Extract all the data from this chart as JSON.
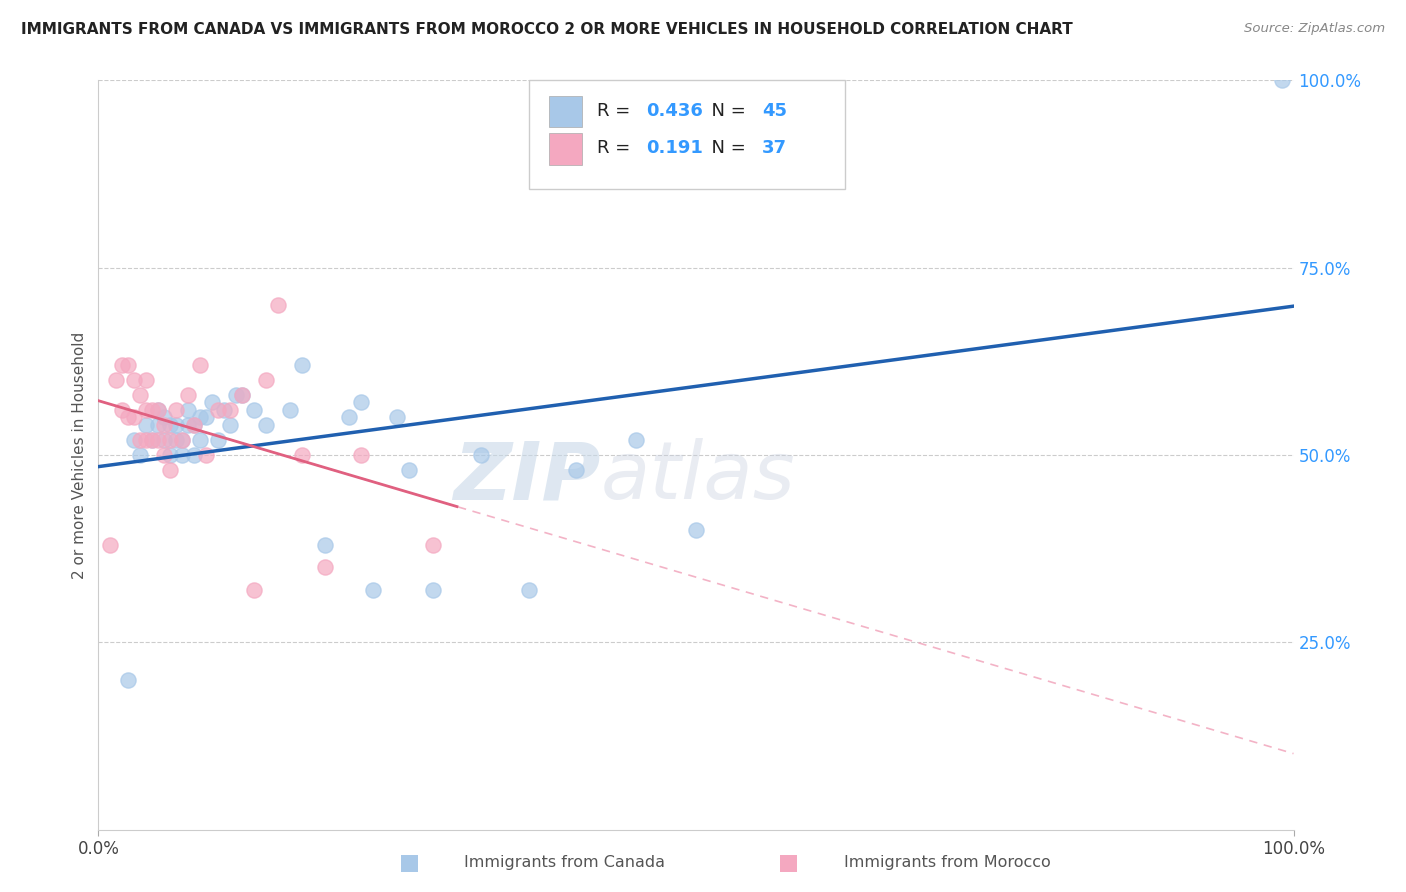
{
  "title": "IMMIGRANTS FROM CANADA VS IMMIGRANTS FROM MOROCCO 2 OR MORE VEHICLES IN HOUSEHOLD CORRELATION CHART",
  "source": "Source: ZipAtlas.com",
  "ylabel": "2 or more Vehicles in Household",
  "xlim": [
    0,
    1.0
  ],
  "ylim": [
    0,
    1.0
  ],
  "ytick_vals": [
    0.25,
    0.5,
    0.75,
    1.0
  ],
  "canada_R": 0.436,
  "canada_N": 45,
  "morocco_R": 0.191,
  "morocco_N": 37,
  "canada_color": "#a8c8e8",
  "morocco_color": "#f4a8c0",
  "canada_line_color": "#2060b0",
  "morocco_line_color": "#e06080",
  "morocco_dash_color": "#f0a0b8",
  "watermark_zip": "ZIP",
  "watermark_atlas": "atlas",
  "background_color": "#ffffff",
  "grid_color": "#cccccc",
  "canada_scatter_x": [
    0.025,
    0.03,
    0.035,
    0.04,
    0.045,
    0.05,
    0.05,
    0.055,
    0.055,
    0.06,
    0.06,
    0.065,
    0.065,
    0.07,
    0.07,
    0.075,
    0.075,
    0.08,
    0.08,
    0.085,
    0.085,
    0.09,
    0.095,
    0.1,
    0.105,
    0.11,
    0.115,
    0.12,
    0.13,
    0.14,
    0.16,
    0.17,
    0.19,
    0.21,
    0.22,
    0.23,
    0.25,
    0.26,
    0.28,
    0.32,
    0.36,
    0.4,
    0.45,
    0.5,
    0.99
  ],
  "canada_scatter_y": [
    0.2,
    0.52,
    0.5,
    0.54,
    0.52,
    0.56,
    0.54,
    0.52,
    0.55,
    0.5,
    0.54,
    0.52,
    0.54,
    0.5,
    0.52,
    0.54,
    0.56,
    0.5,
    0.54,
    0.52,
    0.55,
    0.55,
    0.57,
    0.52,
    0.56,
    0.54,
    0.58,
    0.58,
    0.56,
    0.54,
    0.56,
    0.62,
    0.38,
    0.55,
    0.57,
    0.32,
    0.55,
    0.48,
    0.32,
    0.5,
    0.32,
    0.48,
    0.52,
    0.4,
    1.0
  ],
  "morocco_scatter_x": [
    0.01,
    0.015,
    0.02,
    0.02,
    0.025,
    0.025,
    0.03,
    0.03,
    0.035,
    0.035,
    0.04,
    0.04,
    0.04,
    0.045,
    0.045,
    0.05,
    0.05,
    0.055,
    0.055,
    0.06,
    0.06,
    0.065,
    0.07,
    0.075,
    0.08,
    0.085,
    0.09,
    0.1,
    0.11,
    0.12,
    0.13,
    0.14,
    0.15,
    0.17,
    0.19,
    0.22,
    0.28
  ],
  "morocco_scatter_y": [
    0.38,
    0.6,
    0.56,
    0.62,
    0.55,
    0.62,
    0.55,
    0.6,
    0.52,
    0.58,
    0.52,
    0.56,
    0.6,
    0.52,
    0.56,
    0.52,
    0.56,
    0.5,
    0.54,
    0.48,
    0.52,
    0.56,
    0.52,
    0.58,
    0.54,
    0.62,
    0.5,
    0.56,
    0.56,
    0.58,
    0.32,
    0.6,
    0.7,
    0.5,
    0.35,
    0.5,
    0.38
  ]
}
